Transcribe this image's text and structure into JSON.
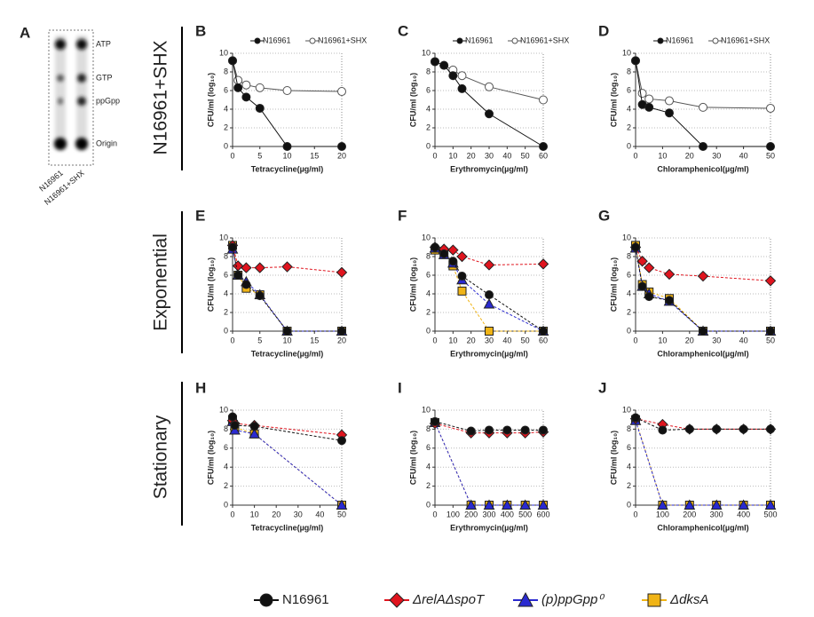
{
  "panel_a": {
    "label": "A",
    "spots": [
      "ATP",
      "GTP",
      "ppGpp",
      "Origin"
    ],
    "lanes": [
      "N16961",
      "N16961+SHX"
    ]
  },
  "row_labels": [
    "N16961+SHX",
    "Exponential",
    "Stationary"
  ],
  "legend": [
    {
      "name": "N16961",
      "color": "#111111",
      "marker": "circle"
    },
    {
      "name": "ΔrelAΔspoT",
      "color": "#e0141e",
      "marker": "diamond"
    },
    {
      "name": "(p)ppGpp⁰",
      "color": "#2a2ad0",
      "marker": "triangle"
    },
    {
      "name": "ΔdksA",
      "color": "#f0b416",
      "marker": "square"
    }
  ],
  "chart_data": [
    {
      "type": "line",
      "title": "B",
      "xlabel": "Tetracycline(µg/ml)",
      "ylabel": "CFU/ml (log₁₀)",
      "x": [
        0,
        1,
        2.5,
        5,
        10,
        20
      ],
      "xlim": [
        0,
        20
      ],
      "xticks": [
        0,
        5,
        10,
        15,
        20
      ],
      "ylim": [
        0,
        10
      ],
      "yticks": [
        0,
        2,
        4,
        6,
        8,
        10
      ],
      "grid": true,
      "series": [
        {
          "name": "N16961",
          "color": "#111111",
          "marker": "circle",
          "values": [
            9.2,
            6.3,
            5.3,
            4.1,
            0,
            0
          ]
        },
        {
          "name": "N16961+SHX",
          "color": "#555555",
          "marker": "open-circle",
          "values": [
            9.2,
            7.1,
            6.6,
            6.3,
            6.0,
            5.9
          ]
        }
      ]
    },
    {
      "type": "line",
      "title": "C",
      "xlabel": "Erythromycin(µg/ml)",
      "ylabel": "CFU/ml (log₁₀)",
      "x": [
        0,
        5,
        10,
        15,
        30,
        60
      ],
      "xlim": [
        0,
        60
      ],
      "xticks": [
        0,
        10,
        20,
        30,
        40,
        50,
        60
      ],
      "ylim": [
        0,
        10
      ],
      "yticks": [
        0,
        2,
        4,
        6,
        8,
        10
      ],
      "grid": true,
      "series": [
        {
          "name": "N16961",
          "color": "#111111",
          "marker": "circle",
          "values": [
            9.1,
            8.7,
            7.6,
            6.2,
            3.5,
            0
          ]
        },
        {
          "name": "N16961+SHX",
          "color": "#555555",
          "marker": "open-circle",
          "values": [
            9.1,
            8.7,
            8.2,
            7.6,
            6.4,
            5.0
          ]
        }
      ]
    },
    {
      "type": "line",
      "title": "D",
      "xlabel": "Chloramphenicol(µg/ml)",
      "ylabel": "CFU/ml (log₁₀)",
      "x": [
        0,
        2.5,
        5,
        12.5,
        25,
        50
      ],
      "xlim": [
        0,
        50
      ],
      "xticks": [
        0,
        10,
        20,
        30,
        40,
        50
      ],
      "ylim": [
        0,
        10
      ],
      "yticks": [
        0,
        2,
        4,
        6,
        8,
        10
      ],
      "grid": true,
      "series": [
        {
          "name": "N16961",
          "color": "#111111",
          "marker": "circle",
          "values": [
            9.2,
            4.5,
            4.2,
            3.6,
            0,
            0
          ]
        },
        {
          "name": "N16961+SHX",
          "color": "#555555",
          "marker": "open-circle",
          "values": [
            9.2,
            5.7,
            5.1,
            4.9,
            4.2,
            4.1
          ]
        }
      ]
    },
    {
      "type": "line",
      "title": "E",
      "xlabel": "Tetracycline(µg/ml)",
      "ylabel": "CFU/ml (log₁₀)",
      "x": [
        0,
        1,
        2.5,
        5,
        10,
        20
      ],
      "xlim": [
        0,
        20
      ],
      "xticks": [
        0,
        5,
        10,
        15,
        20
      ],
      "ylim": [
        0,
        10
      ],
      "yticks": [
        0,
        2,
        4,
        6,
        8,
        10
      ],
      "grid": true,
      "series": [
        {
          "values": [
            9.0,
            6.0,
            5.0,
            3.8,
            0,
            0
          ]
        },
        {
          "values": [
            9.2,
            7.0,
            6.8,
            6.8,
            6.9,
            6.3
          ]
        },
        {
          "values": [
            8.8,
            6.0,
            5.3,
            3.9,
            0,
            0
          ]
        },
        {
          "values": [
            9.2,
            6.0,
            4.6,
            3.9,
            0,
            0
          ]
        }
      ]
    },
    {
      "type": "line",
      "title": "F",
      "xlabel": "Erythromycin(µg/ml)",
      "ylabel": "CFU/ml (log₁₀)",
      "x": [
        0,
        5,
        10,
        15,
        30,
        60
      ],
      "xlim": [
        0,
        60
      ],
      "xticks": [
        0,
        10,
        20,
        30,
        40,
        50,
        60
      ],
      "ylim": [
        0,
        10
      ],
      "yticks": [
        0,
        2,
        4,
        6,
        8,
        10
      ],
      "grid": true,
      "series": [
        {
          "values": [
            9.0,
            8.3,
            7.5,
            5.9,
            3.9,
            0
          ]
        },
        {
          "values": [
            9.0,
            8.8,
            8.7,
            8.0,
            7.1,
            7.2
          ]
        },
        {
          "values": [
            8.9,
            8.2,
            7.3,
            5.5,
            2.9,
            0
          ]
        },
        {
          "values": [
            8.7,
            8.3,
            7.0,
            4.3,
            0,
            0
          ]
        }
      ]
    },
    {
      "type": "line",
      "title": "G",
      "xlabel": "Chloramphenicol(µg/ml)",
      "ylabel": "CFU/ml (log₁₀)",
      "x": [
        0,
        2.5,
        5,
        12.5,
        25,
        50
      ],
      "xlim": [
        0,
        50
      ],
      "xticks": [
        0,
        10,
        20,
        30,
        40,
        50
      ],
      "ylim": [
        0,
        10
      ],
      "yticks": [
        0,
        2,
        4,
        6,
        8,
        10
      ],
      "grid": true,
      "series": [
        {
          "values": [
            9.0,
            4.8,
            3.7,
            3.3,
            0,
            0
          ]
        },
        {
          "values": [
            9.0,
            7.5,
            6.8,
            6.1,
            5.9,
            5.4
          ]
        },
        {
          "values": [
            8.9,
            4.8,
            4.0,
            3.2,
            0,
            0
          ]
        },
        {
          "values": [
            9.2,
            5.0,
            4.2,
            3.5,
            0,
            0
          ]
        }
      ]
    },
    {
      "type": "line",
      "title": "H",
      "xlabel": "Tetracycline(µg/ml)",
      "ylabel": "CFU/ml (log₁₀)",
      "x": [
        0,
        1,
        10,
        50
      ],
      "xlim": [
        0,
        50
      ],
      "xticks": [
        0,
        10,
        20,
        30,
        40,
        50
      ],
      "ylim": [
        0,
        10
      ],
      "yticks": [
        0,
        2,
        4,
        6,
        8,
        10
      ],
      "grid": true,
      "series": [
        {
          "values": [
            9.3,
            8.4,
            8.3,
            6.8
          ]
        },
        {
          "values": [
            8.9,
            8.6,
            8.4,
            7.4
          ]
        },
        {
          "values": [
            8.8,
            7.9,
            7.5,
            0
          ]
        },
        {
          "values": [
            9.0,
            8.2,
            7.5,
            0
          ]
        }
      ]
    },
    {
      "type": "line",
      "title": "I",
      "xlabel": "Erythromycin(µg/ml)",
      "ylabel": "CFU/ml (log₁₀)",
      "x": [
        0,
        200,
        300,
        400,
        500,
        600
      ],
      "xlim": [
        0,
        600
      ],
      "xticks": [
        0,
        100,
        200,
        300,
        400,
        500,
        600
      ],
      "ylim": [
        0,
        10
      ],
      "yticks": [
        0,
        2,
        4,
        6,
        8,
        10
      ],
      "grid": true,
      "series": [
        {
          "values": [
            8.8,
            7.8,
            7.9,
            7.9,
            7.9,
            7.9
          ]
        },
        {
          "values": [
            8.6,
            7.6,
            7.6,
            7.6,
            7.6,
            7.7
          ]
        },
        {
          "values": [
            8.7,
            0,
            0,
            0,
            0,
            0
          ]
        },
        {
          "values": [
            8.7,
            0,
            0,
            0,
            0,
            0
          ]
        }
      ]
    },
    {
      "type": "line",
      "title": "J",
      "xlabel": "Chloramphenicol(µg/ml)",
      "ylabel": "CFU/ml (log₁₀)",
      "x": [
        0,
        100,
        200,
        300,
        400,
        500
      ],
      "xlim": [
        0,
        500
      ],
      "xticks": [
        0,
        100,
        200,
        300,
        400,
        500
      ],
      "ylim": [
        0,
        10
      ],
      "yticks": [
        0,
        2,
        4,
        6,
        8,
        10
      ],
      "grid": true,
      "series": [
        {
          "values": [
            9.2,
            7.9,
            8.0,
            8.0,
            8.0,
            8.0
          ]
        },
        {
          "values": [
            9.1,
            8.5,
            8.0,
            8.0,
            8.0,
            8.0
          ]
        },
        {
          "values": [
            8.9,
            0,
            0,
            0,
            0,
            0
          ]
        },
        {
          "values": [
            9.0,
            0,
            0,
            0,
            0,
            0
          ]
        }
      ]
    }
  ]
}
